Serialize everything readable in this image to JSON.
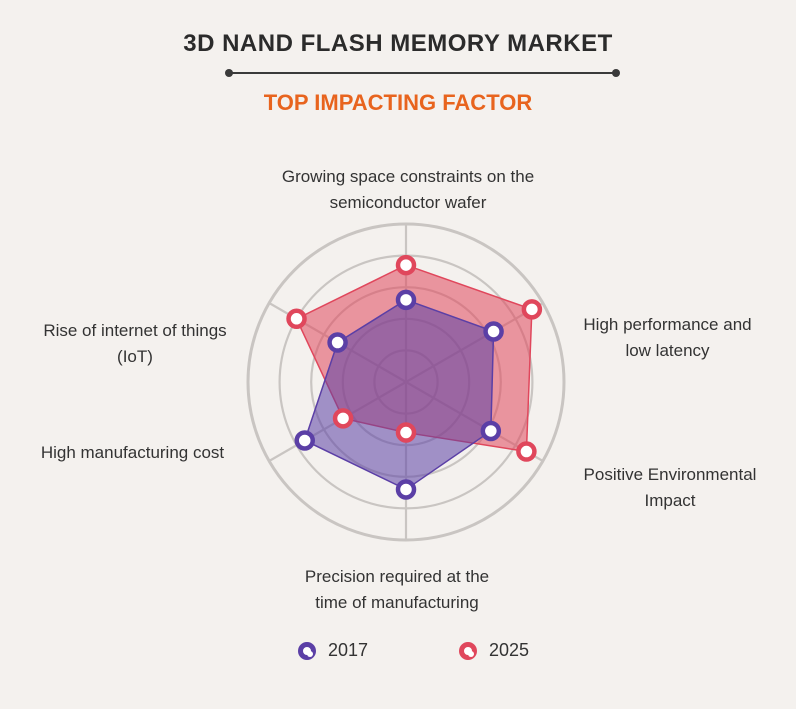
{
  "header": {
    "title": "3D NAND FLASH MEMORY MARKET",
    "subtitle": "TOP IMPACTING FACTOR"
  },
  "colors": {
    "s2017": "#5b3fa6",
    "s2025": "#e0475c",
    "subtitle": "#e8641e",
    "grid": "#c9c5c2"
  },
  "chart_data": {
    "type": "radar",
    "axes": [
      [
        "Growing space constraints on the",
        "semiconductor wafer"
      ],
      [
        "High performance and",
        "low latency"
      ],
      [
        "Positive Environmental",
        "Impact"
      ],
      [
        "Precision required at the",
        "time of manufacturing"
      ],
      [
        "High manufacturing cost"
      ],
      [
        "Rise of internet of things",
        "(IoT)"
      ]
    ],
    "scale_max": 5,
    "grid_rings": 5,
    "series": [
      {
        "name": "2017",
        "values": [
          2.6,
          3.2,
          3.1,
          3.4,
          3.7,
          2.5
        ]
      },
      {
        "name": "2025",
        "values": [
          3.7,
          4.6,
          4.4,
          1.6,
          2.3,
          4.0
        ]
      }
    ],
    "legend": "bottom"
  }
}
